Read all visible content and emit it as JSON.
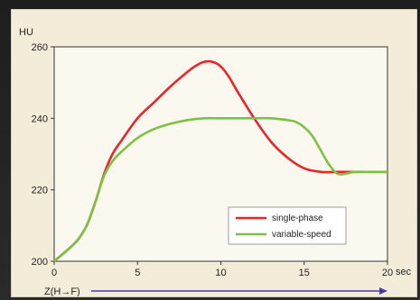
{
  "chart_data": {
    "type": "line",
    "ylabel": "HU",
    "xunit": "sec",
    "xaxis_caption": "Z(H→F)",
    "xlim": [
      0,
      20
    ],
    "ylim": [
      200,
      260
    ],
    "xticks": [
      "0",
      "5",
      "10",
      "15",
      "20"
    ],
    "yticks": [
      "200",
      "220",
      "240",
      "260"
    ],
    "legend_position": "bottom-right",
    "series": [
      {
        "name": "single-phase",
        "color": "#e8262a",
        "x": [
          0,
          1,
          1.5,
          2,
          2.5,
          3,
          3.5,
          4,
          5,
          6,
          7,
          8,
          8.5,
          9,
          9.5,
          10,
          10.5,
          11,
          12,
          13,
          14,
          15,
          16,
          17,
          18,
          19,
          20
        ],
        "y": [
          200,
          204,
          206.5,
          210.5,
          217,
          224.5,
          230,
          233.5,
          240,
          244.5,
          249,
          253,
          254.7,
          255.8,
          255.8,
          254.5,
          251.5,
          247.5,
          240,
          233.5,
          229,
          226,
          225,
          225,
          225,
          225,
          225
        ]
      },
      {
        "name": "variable-speed",
        "color": "#7dc142",
        "x": [
          0,
          1,
          1.5,
          2,
          2.5,
          3,
          3.5,
          4,
          5,
          6,
          7,
          8,
          9,
          10,
          11,
          12,
          13,
          14,
          14.5,
          15,
          15.5,
          16,
          16.5,
          17,
          17.5,
          18,
          19,
          20
        ],
        "y": [
          200,
          204,
          206.5,
          210.5,
          217,
          224,
          228,
          230.5,
          234.5,
          237,
          238.5,
          239.5,
          240,
          240,
          240,
          240,
          240,
          239.5,
          239,
          237.5,
          235,
          231,
          227,
          224.5,
          224.5,
          225,
          225,
          225
        ]
      }
    ]
  }
}
